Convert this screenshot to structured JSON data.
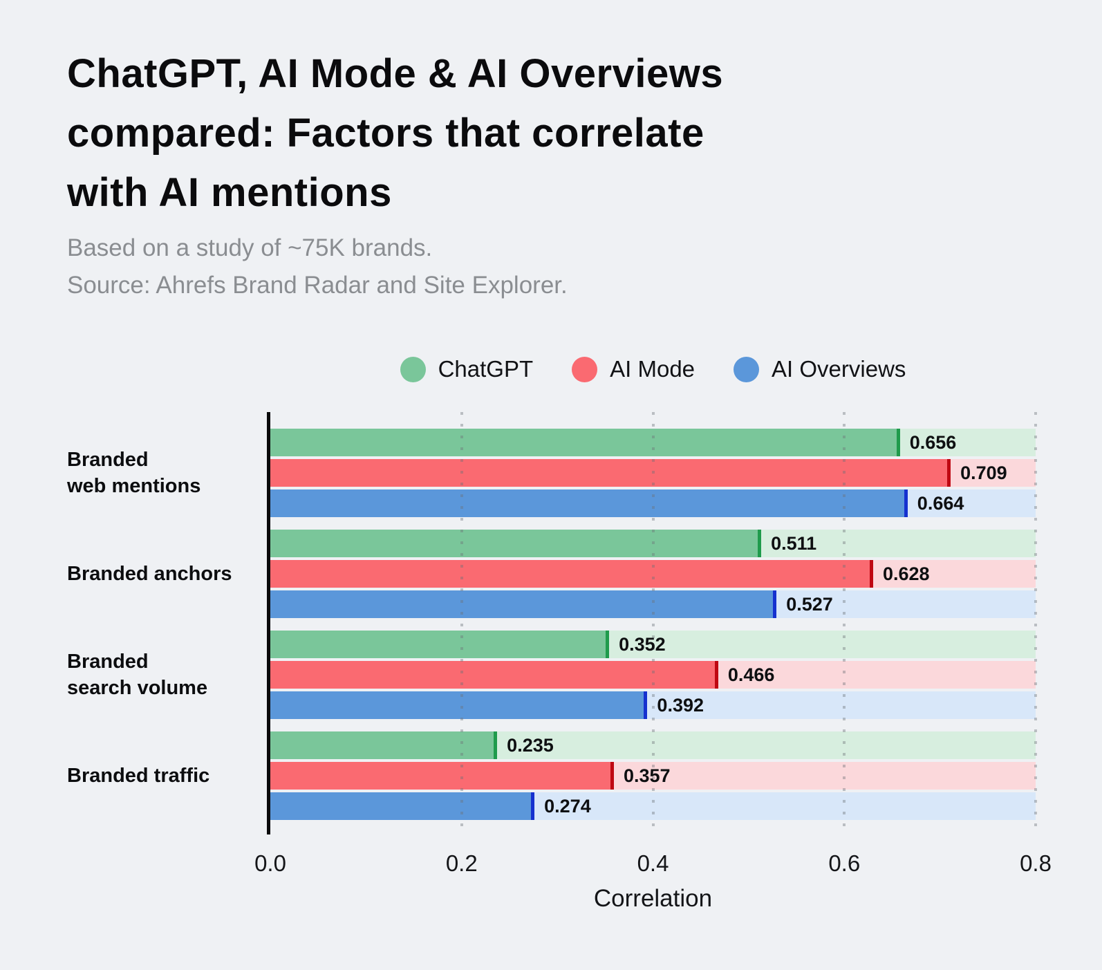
{
  "page": {
    "title": "ChatGPT, AI Mode & AI Overviews\ncompared: Factors that correlate\nwith AI mentions",
    "subtitle": "Based on a study of ~75K brands.\nSource: Ahrefs Brand Radar and Site Explorer.",
    "background_color": "#EFF1F4"
  },
  "chart_data": {
    "type": "bar",
    "orientation": "horizontal",
    "title": "ChatGPT, AI Mode & AI Overviews compared: Factors that correlate with AI mentions",
    "subtitle": "Based on a study of ~75K brands. Source: Ahrefs Brand Radar and Site Explorer.",
    "xlabel": "Correlation",
    "xlim": [
      0.0,
      0.8
    ],
    "xticks": [
      "0.0",
      "0.2",
      "0.4",
      "0.6",
      "0.8"
    ],
    "grid": "dotted-vertical-over-bars",
    "legend_position": "top-center",
    "value_label_decimals": 3,
    "categories": [
      "Branded\nweb mentions",
      "Branded anchors",
      "Branded\nsearch volume",
      "Branded traffic"
    ],
    "series": [
      {
        "name": "ChatGPT",
        "color": "#7AC69A",
        "edge_color": "#1F9B4C",
        "track_color": "#D7EEDF",
        "values": [
          0.656,
          0.511,
          0.352,
          0.235
        ]
      },
      {
        "name": "AI Mode",
        "color": "#FA6A71",
        "edge_color": "#BF0812",
        "track_color": "#FBD8DB",
        "values": [
          0.709,
          0.628,
          0.466,
          0.357
        ]
      },
      {
        "name": "AI Overviews",
        "color": "#5B97DA",
        "edge_color": "#1531CF",
        "track_color": "#D8E7F9",
        "values": [
          0.664,
          0.527,
          0.392,
          0.274
        ]
      }
    ]
  }
}
